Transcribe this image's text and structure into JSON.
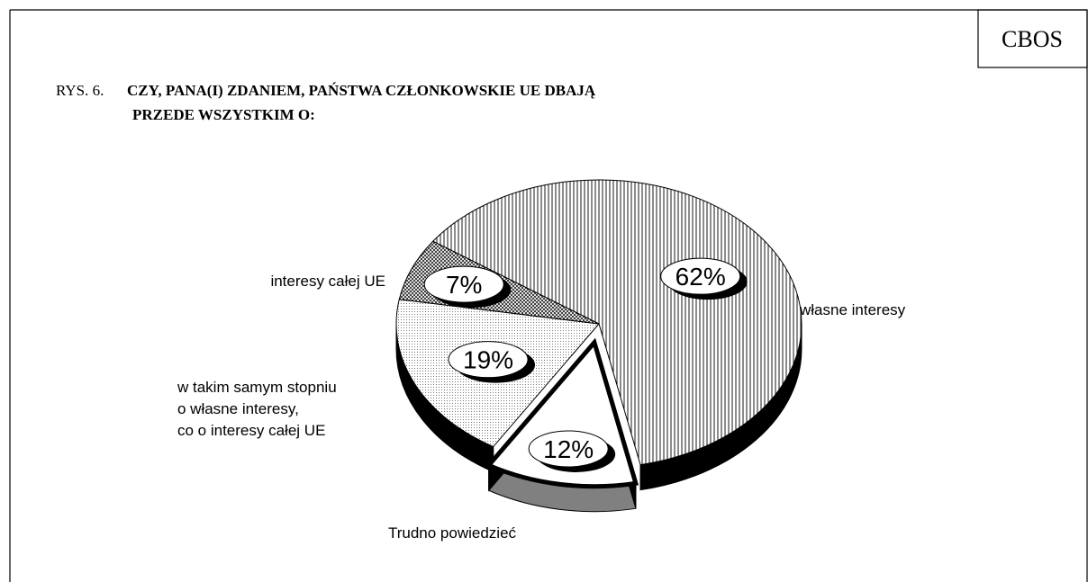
{
  "chart_data": {
    "type": "pie",
    "source": "CBOS",
    "figure_label": "RYS. 6.",
    "title_lines": [
      "CZY, PANA(I) ZDANIEM, PAŃSTWA CZŁONKOWSKIE UE DBAJĄ",
      "PRZEDE WSZYSTKIM O:"
    ],
    "categories": [
      "własne interesy",
      "Trudno powiedzieć",
      "w takim samym stopniu\no własne interesy,\nco o interesy całej UE",
      "interesy całej UE"
    ],
    "values": [
      62,
      12,
      19,
      7
    ],
    "value_labels": [
      "62%",
      "12%",
      "19%",
      "7%"
    ],
    "exploded": [
      false,
      true,
      false,
      false
    ],
    "side_colors": [
      "#000000",
      "#808080",
      "#000000",
      "#000000"
    ]
  }
}
